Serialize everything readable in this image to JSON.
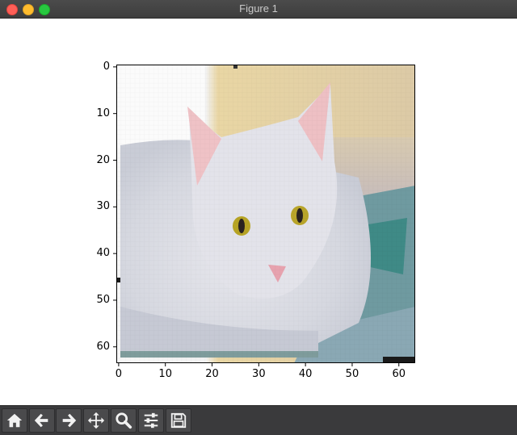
{
  "window": {
    "title": "Figure 1"
  },
  "chart_data": {
    "type": "heatmap",
    "title": "",
    "xlabel": "",
    "ylabel": "",
    "x_ticks": [
      "0",
      "10",
      "20",
      "30",
      "40",
      "50",
      "60"
    ],
    "y_ticks": [
      "0",
      "10",
      "20",
      "30",
      "40",
      "50",
      "60"
    ],
    "x_range": [
      -0.5,
      63.5
    ],
    "y_range": [
      -0.5,
      63.5
    ],
    "y_inverted": true,
    "grid": false,
    "image_size": [
      64,
      64
    ]
  },
  "toolbar": {
    "buttons": [
      {
        "name": "home-button",
        "icon": "home-icon"
      },
      {
        "name": "back-button",
        "icon": "arrow-left-icon"
      },
      {
        "name": "forward-button",
        "icon": "arrow-right-icon"
      },
      {
        "name": "pan-button",
        "icon": "move-icon"
      },
      {
        "name": "zoom-button",
        "icon": "magnifier-icon"
      },
      {
        "name": "configure-subplots-button",
        "icon": "sliders-icon"
      },
      {
        "name": "save-button",
        "icon": "floppy-disk-icon"
      }
    ]
  },
  "colors": {
    "titlebar": "#3d3d3d",
    "toolbar": "#3a3a3c",
    "background": "#ffffff"
  }
}
